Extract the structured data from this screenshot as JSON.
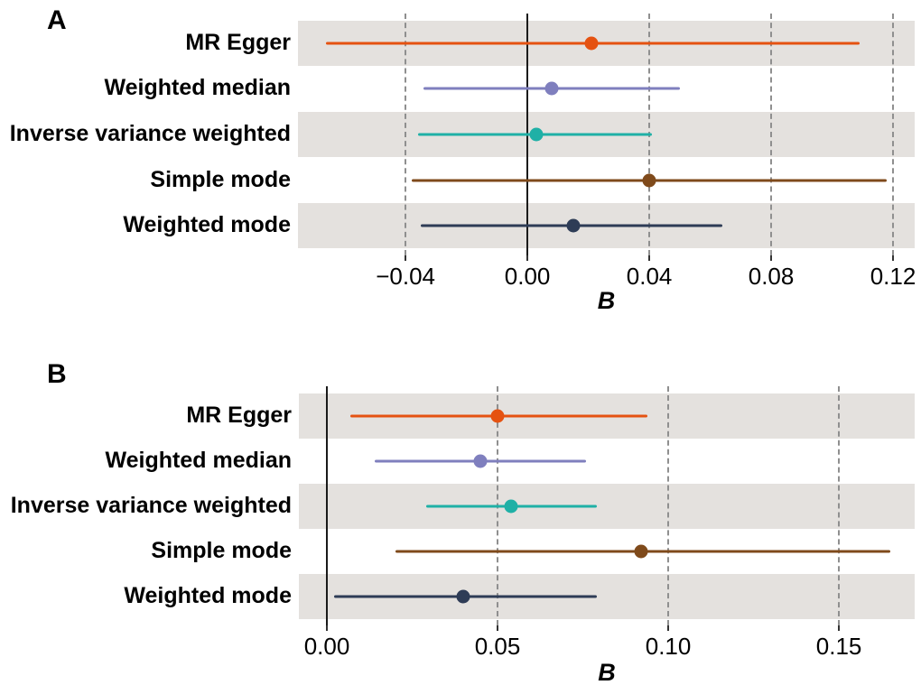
{
  "figure": {
    "background": "#ffffff",
    "band_color": "#E4E1DE",
    "grid_color": "#8F8F8F",
    "zero_line_color": "#1A1A1A",
    "tick_color": "#333333",
    "text_color": "#000000"
  },
  "chart_data": [
    {
      "type": "forest",
      "panel_label": "A",
      "xlabel": "B",
      "legend": "none",
      "grid": "dashed-vertical",
      "striped_rows": [
        0,
        2,
        4
      ],
      "zero_line": 0,
      "categories": [
        "MR Egger",
        "Weighted median",
        "Inverse variance weighted",
        "Simple mode",
        "Weighted mode"
      ],
      "series": [
        {
          "name": "MR Egger",
          "estimate": 0.021,
          "ci_low": -0.066,
          "ci_high": 0.109,
          "color": "#E55211"
        },
        {
          "name": "Weighted median",
          "estimate": 0.008,
          "ci_low": -0.034,
          "ci_high": 0.05,
          "color": "#7F7FBE"
        },
        {
          "name": "Inverse variance weighted",
          "estimate": 0.003,
          "ci_low": -0.036,
          "ci_high": 0.041,
          "color": "#1FB0A6"
        },
        {
          "name": "Simple mode",
          "estimate": 0.04,
          "ci_low": -0.038,
          "ci_high": 0.118,
          "color": "#7F4A1B"
        },
        {
          "name": "Weighted mode",
          "estimate": 0.015,
          "ci_low": -0.035,
          "ci_high": 0.064,
          "color": "#2E3C56"
        }
      ],
      "x_ticks": [
        -0.04,
        0,
        0.04,
        0.08,
        0.12
      ],
      "x_tick_labels": [
        "−0.04",
        "0.00",
        "0.04",
        "0.08",
        "0.12"
      ],
      "xlim": [
        -0.0753,
        0.1271
      ]
    },
    {
      "type": "forest",
      "panel_label": "B",
      "xlabel": "B",
      "legend": "none",
      "grid": "dashed-vertical",
      "striped_rows": [
        0,
        2,
        4
      ],
      "zero_line": 0,
      "categories": [
        "MR Egger",
        "Weighted median",
        "Inverse variance weighted",
        "Simple mode",
        "Weighted mode"
      ],
      "series": [
        {
          "name": "MR Egger",
          "estimate": 0.05,
          "ci_low": 0.007,
          "ci_high": 0.094,
          "color": "#E55211"
        },
        {
          "name": "Weighted median",
          "estimate": 0.045,
          "ci_low": 0.014,
          "ci_high": 0.076,
          "color": "#7F7FBE"
        },
        {
          "name": "Inverse variance weighted",
          "estimate": 0.054,
          "ci_low": 0.029,
          "ci_high": 0.079,
          "color": "#1FB0A6"
        },
        {
          "name": "Simple mode",
          "estimate": 0.092,
          "ci_low": 0.02,
          "ci_high": 0.165,
          "color": "#7F4A1B"
        },
        {
          "name": "Weighted mode",
          "estimate": 0.04,
          "ci_low": 0.002,
          "ci_high": 0.079,
          "color": "#2E3C56"
        }
      ],
      "x_ticks": [
        0,
        0.05,
        0.1,
        0.15
      ],
      "x_tick_labels": [
        "0.00",
        "0.05",
        "0.10",
        "0.15"
      ],
      "xlim": [
        -0.0082,
        0.1722
      ]
    }
  ]
}
